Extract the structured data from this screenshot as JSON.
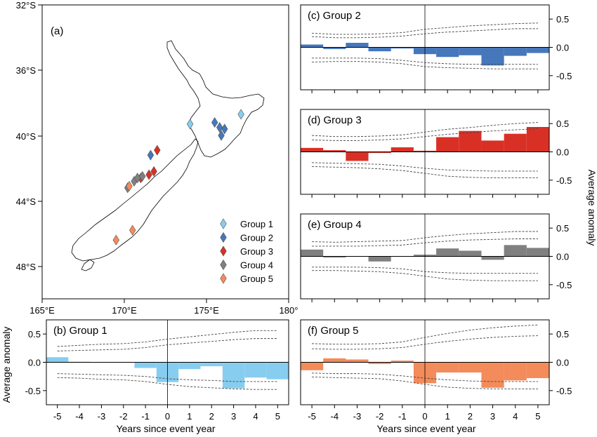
{
  "colors": {
    "group1": "#87cdf0",
    "group2": "#4677bb",
    "group3": "#d93026",
    "group4": "#808080",
    "group5": "#f38b5a"
  },
  "map": {
    "label": "(a)",
    "lat_ticks": [
      "32°S",
      "36°S",
      "40°S",
      "44°S",
      "48°S"
    ],
    "lon_ticks": [
      "165°E",
      "170°E",
      "175°E",
      "180°"
    ],
    "xlim": [
      165,
      180
    ],
    "ylim": [
      -50,
      -32
    ],
    "legend": [
      {
        "label": "Group 1",
        "color": "#87cdf0"
      },
      {
        "label": "Group 2",
        "color": "#4677bb"
      },
      {
        "label": "Group 3",
        "color": "#d93026"
      },
      {
        "label": "Group 4",
        "color": "#808080"
      },
      {
        "label": "Group 5",
        "color": "#f38b5a"
      }
    ],
    "sites": [
      {
        "group": 1,
        "lon": 174.0,
        "lat": -39.3
      },
      {
        "group": 1,
        "lon": 177.1,
        "lat": -38.7
      },
      {
        "group": 2,
        "lon": 175.5,
        "lat": -39.2
      },
      {
        "group": 2,
        "lon": 175.8,
        "lat": -39.5
      },
      {
        "group": 2,
        "lon": 176.1,
        "lat": -39.6
      },
      {
        "group": 2,
        "lon": 175.9,
        "lat": -40.0
      },
      {
        "group": 2,
        "lon": 171.6,
        "lat": -41.2
      },
      {
        "group": 3,
        "lon": 172.0,
        "lat": -40.9
      },
      {
        "group": 3,
        "lon": 171.0,
        "lat": -42.6
      },
      {
        "group": 3,
        "lon": 171.5,
        "lat": -42.4
      },
      {
        "group": 3,
        "lon": 171.8,
        "lat": -42.2
      },
      {
        "group": 4,
        "lon": 170.6,
        "lat": -42.8
      },
      {
        "group": 4,
        "lon": 170.8,
        "lat": -42.6
      },
      {
        "group": 4,
        "lon": 171.1,
        "lat": -42.5
      },
      {
        "group": 4,
        "lon": 170.2,
        "lat": -43.2
      },
      {
        "group": 5,
        "lon": 170.3,
        "lat": -43.1
      },
      {
        "group": 5,
        "lon": 170.5,
        "lat": -45.8
      },
      {
        "group": 5,
        "lon": 169.5,
        "lat": -46.4
      }
    ]
  },
  "chart_data": [
    {
      "type": "bar",
      "panel": "(b) Group 1",
      "color_key": "group1",
      "x": [
        -5,
        -4,
        -3,
        -2,
        -1,
        0,
        1,
        2,
        3,
        4,
        5
      ],
      "values": [
        0.09,
        0.01,
        0.0,
        0.0,
        -0.1,
        -0.35,
        -0.12,
        -0.07,
        -0.46,
        -0.27,
        -0.3
      ],
      "upper_outer": [
        0.28,
        0.3,
        0.32,
        0.33,
        0.36,
        0.41,
        0.45,
        0.49,
        0.53,
        0.56,
        0.56
      ],
      "upper_inner": [
        0.2,
        0.21,
        0.22,
        0.23,
        0.26,
        0.31,
        0.34,
        0.37,
        0.4,
        0.42,
        0.42
      ],
      "lower_inner": [
        -0.2,
        -0.21,
        -0.22,
        -0.23,
        -0.25,
        -0.29,
        -0.31,
        -0.32,
        -0.34,
        -0.34,
        -0.34
      ],
      "lower_outer": [
        -0.27,
        -0.28,
        -0.3,
        -0.31,
        -0.34,
        -0.39,
        -0.43,
        -0.45,
        -0.47,
        -0.48,
        -0.48
      ],
      "xlabel": "Years since event year",
      "ylabel": "Average anomaly",
      "ylim": [
        -0.75,
        0.75
      ],
      "yticks": [
        "0.5",
        "0.0",
        "-0.5"
      ],
      "xticks": [
        "-5",
        "-4",
        "-3",
        "-2",
        "-1",
        "0",
        "1",
        "2",
        "3",
        "4",
        "5"
      ]
    },
    {
      "type": "bar",
      "panel": "(c) Group 2",
      "color_key": "group2",
      "x": [
        -5,
        -4,
        -3,
        -2,
        -1,
        0,
        1,
        2,
        3,
        4,
        5
      ],
      "values": [
        0.05,
        -0.03,
        0.08,
        -0.07,
        -0.02,
        -0.12,
        -0.17,
        -0.14,
        -0.32,
        -0.15,
        -0.1
      ],
      "upper_outer": [
        0.25,
        0.23,
        0.23,
        0.24,
        0.26,
        0.32,
        0.35,
        0.38,
        0.4,
        0.42,
        0.43
      ],
      "upper_inner": [
        0.19,
        0.17,
        0.17,
        0.18,
        0.2,
        0.24,
        0.27,
        0.29,
        0.31,
        0.33,
        0.33
      ],
      "lower_inner": [
        -0.19,
        -0.19,
        -0.19,
        -0.2,
        -0.23,
        -0.27,
        -0.29,
        -0.3,
        -0.3,
        -0.3,
        -0.3
      ],
      "lower_outer": [
        -0.26,
        -0.25,
        -0.25,
        -0.26,
        -0.29,
        -0.34,
        -0.36,
        -0.37,
        -0.38,
        -0.38,
        -0.38
      ],
      "xlabel": "",
      "ylabel": "",
      "ylim": [
        -0.75,
        0.75
      ],
      "yticks": [
        "0.5",
        "0.0",
        "-0.5"
      ],
      "xticks": []
    },
    {
      "type": "bar",
      "panel": "(d) Group 3",
      "color_key": "group3",
      "x": [
        -5,
        -4,
        -3,
        -2,
        -1,
        0,
        1,
        2,
        3,
        4,
        5
      ],
      "values": [
        0.07,
        0.03,
        -0.16,
        -0.02,
        0.08,
        0.02,
        0.26,
        0.37,
        0.2,
        0.32,
        0.44
      ],
      "upper_outer": [
        0.29,
        0.27,
        0.27,
        0.28,
        0.3,
        0.35,
        0.4,
        0.43,
        0.47,
        0.5,
        0.52
      ],
      "upper_inner": [
        0.21,
        0.2,
        0.2,
        0.21,
        0.23,
        0.27,
        0.31,
        0.34,
        0.37,
        0.39,
        0.41
      ],
      "lower_inner": [
        -0.19,
        -0.2,
        -0.21,
        -0.22,
        -0.25,
        -0.29,
        -0.32,
        -0.33,
        -0.34,
        -0.34,
        -0.34
      ],
      "lower_outer": [
        -0.26,
        -0.27,
        -0.28,
        -0.3,
        -0.33,
        -0.38,
        -0.43,
        -0.45,
        -0.46,
        -0.46,
        -0.46
      ],
      "xlabel": "",
      "ylabel": "Average anomaly",
      "ylim": [
        -0.75,
        0.75
      ],
      "yticks": [
        "0.5",
        "0.0",
        "-0.5"
      ],
      "xticks": []
    },
    {
      "type": "bar",
      "panel": "(e) Group 4",
      "color_key": "group4",
      "x": [
        -5,
        -4,
        -3,
        -2,
        -1,
        0,
        1,
        2,
        3,
        4,
        5
      ],
      "values": [
        0.12,
        -0.02,
        0.0,
        -0.09,
        0.0,
        0.03,
        0.14,
        0.1,
        -0.06,
        0.2,
        0.15
      ],
      "upper_outer": [
        0.26,
        0.25,
        0.26,
        0.27,
        0.28,
        0.33,
        0.37,
        0.4,
        0.42,
        0.44,
        0.44
      ],
      "upper_inner": [
        0.18,
        0.18,
        0.18,
        0.19,
        0.2,
        0.24,
        0.27,
        0.29,
        0.3,
        0.31,
        0.31
      ],
      "lower_inner": [
        -0.19,
        -0.19,
        -0.19,
        -0.2,
        -0.22,
        -0.27,
        -0.29,
        -0.3,
        -0.3,
        -0.3,
        -0.3
      ],
      "lower_outer": [
        -0.25,
        -0.25,
        -0.26,
        -0.27,
        -0.3,
        -0.35,
        -0.4,
        -0.42,
        -0.43,
        -0.43,
        -0.43
      ],
      "xlabel": "",
      "ylabel": "",
      "ylim": [
        -0.75,
        0.75
      ],
      "yticks": [
        "0.5",
        "0.0",
        "-0.5"
      ],
      "xticks": []
    },
    {
      "type": "bar",
      "panel": "(f) Group 5",
      "color_key": "group5",
      "x": [
        -5,
        -4,
        -3,
        -2,
        -1,
        0,
        1,
        2,
        3,
        4,
        5
      ],
      "values": [
        -0.14,
        0.07,
        0.05,
        -0.03,
        0.03,
        -0.37,
        -0.18,
        -0.18,
        -0.45,
        -0.32,
        -0.28
      ],
      "upper_outer": [
        0.33,
        0.32,
        0.32,
        0.33,
        0.36,
        0.44,
        0.51,
        0.57,
        0.61,
        0.64,
        0.66
      ],
      "upper_inner": [
        0.24,
        0.23,
        0.23,
        0.24,
        0.26,
        0.32,
        0.37,
        0.41,
        0.44,
        0.46,
        0.47
      ],
      "lower_inner": [
        -0.19,
        -0.2,
        -0.2,
        -0.21,
        -0.24,
        -0.28,
        -0.31,
        -0.33,
        -0.34,
        -0.34,
        -0.34
      ],
      "lower_outer": [
        -0.26,
        -0.27,
        -0.28,
        -0.29,
        -0.33,
        -0.39,
        -0.44,
        -0.46,
        -0.47,
        -0.47,
        -0.47
      ],
      "xlabel": "Years since event year",
      "ylabel": "",
      "ylim": [
        -0.75,
        0.75
      ],
      "yticks": [
        "0.5",
        "0.0",
        "-0.5"
      ],
      "xticks": [
        "-5",
        "-4",
        "-3",
        "-2",
        "-1",
        "0",
        "1",
        "2",
        "3",
        "4",
        "5"
      ]
    }
  ]
}
